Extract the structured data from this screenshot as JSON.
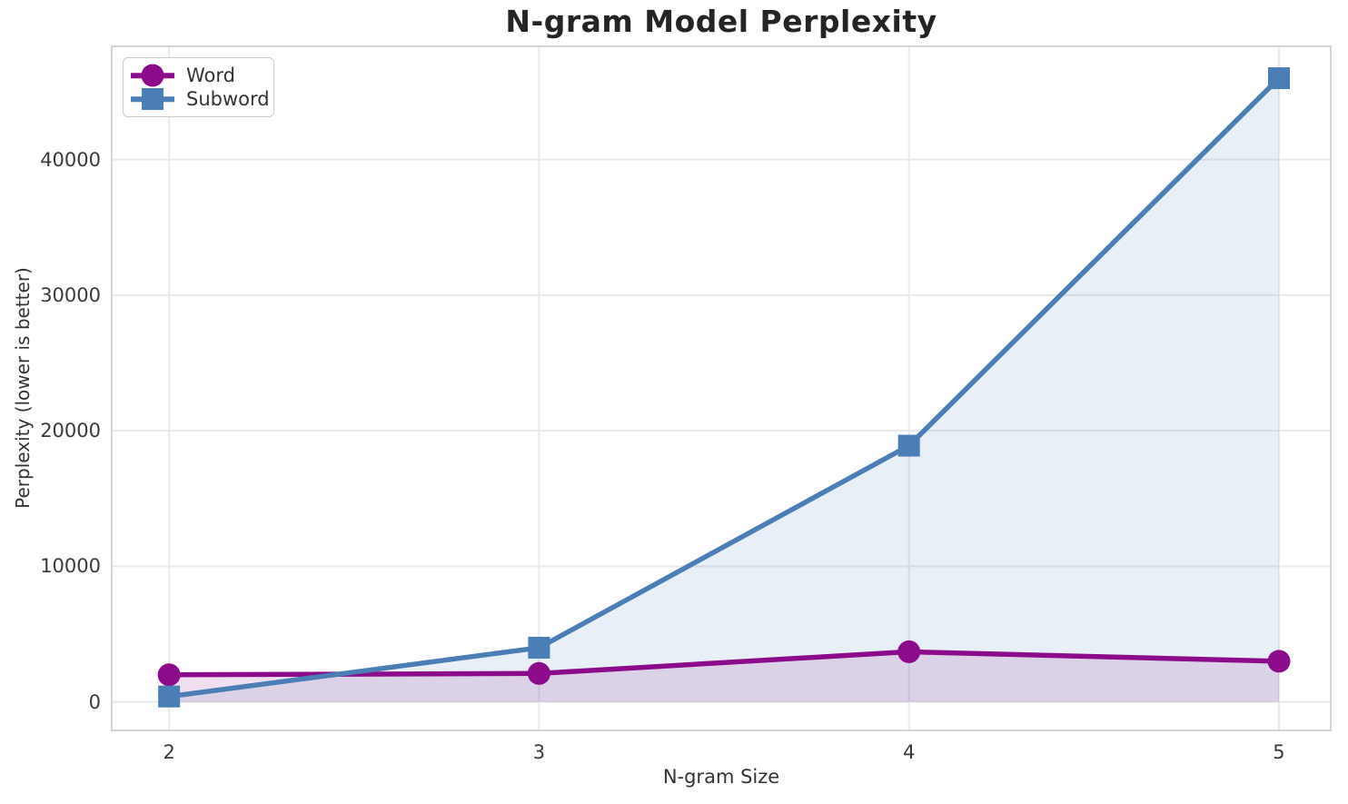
{
  "chart_data": {
    "type": "line",
    "title": "N-gram Model Perplexity",
    "xlabel": "N-gram Size",
    "ylabel": "Perplexity (lower is better)",
    "x": [
      2,
      3,
      4,
      5
    ],
    "series": [
      {
        "name": "Word",
        "values": [
          2000,
          2100,
          3700,
          3000
        ],
        "color": "#8B0B8B",
        "fill_color": "rgba(139,11,139,0.13)",
        "marker": "circle"
      },
      {
        "name": "Subword",
        "values": [
          400,
          4000,
          18900,
          46000
        ],
        "color": "#4A7EB5",
        "fill_color": "rgba(74,126,181,0.12)",
        "marker": "square"
      }
    ],
    "xticks": [
      2,
      3,
      4,
      5
    ],
    "xtick_labels": [
      "2",
      "3",
      "4",
      "5"
    ],
    "yticks": [
      0,
      10000,
      20000,
      30000,
      40000
    ],
    "ytick_labels": [
      "0",
      "10000",
      "20000",
      "30000",
      "40000"
    ],
    "xlim": [
      1.845,
      5.14
    ],
    "ylim": [
      -2100,
      48350
    ],
    "grid": true,
    "fill_to_zero": true,
    "legend_position": "upper left"
  },
  "colors": {
    "grid": "#E9E9EC",
    "spine": "#D4D4D4",
    "tick_text": "#3A3A3A",
    "label_text": "#333333",
    "title_text": "#242424",
    "background": "#FFFFFF"
  }
}
